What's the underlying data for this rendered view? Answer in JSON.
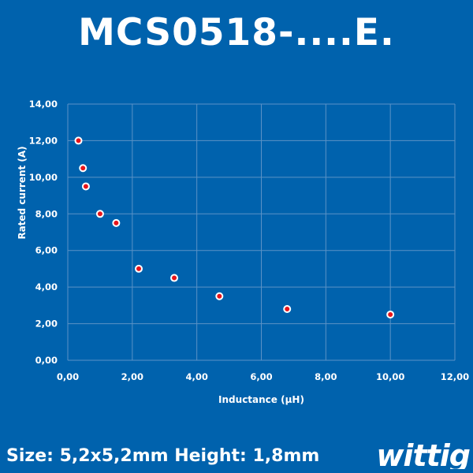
{
  "title": "MCS0518-....E.",
  "footer": {
    "spec_text": "Size: 5,2x5,2mm Height: 1,8mm",
    "logo_text": "wittig"
  },
  "colors": {
    "background": "#0062ad",
    "grid": "#5b92c6",
    "marker_fill": "#e8141a",
    "marker_stroke": "#ffffff",
    "text": "#ffffff"
  },
  "chart_data": {
    "type": "scatter",
    "title": "",
    "xlabel": "Inductance (µH)",
    "ylabel": "Rated current (A)",
    "xlim": [
      0,
      12
    ],
    "ylim": [
      0,
      14
    ],
    "xticks": [
      "0,00",
      "2,00",
      "4,00",
      "6,00",
      "8,00",
      "10,00",
      "12,00"
    ],
    "yticks": [
      "0,00",
      "2,00",
      "4,00",
      "6,00",
      "8,00",
      "10,00",
      "12,00",
      "14,00"
    ],
    "grid": true,
    "legend": "none",
    "points": [
      {
        "x": 0.33,
        "y": 12.0
      },
      {
        "x": 0.47,
        "y": 10.5
      },
      {
        "x": 0.56,
        "y": 9.5
      },
      {
        "x": 1.0,
        "y": 8.0
      },
      {
        "x": 1.5,
        "y": 7.5
      },
      {
        "x": 2.2,
        "y": 5.0
      },
      {
        "x": 3.3,
        "y": 4.5
      },
      {
        "x": 4.7,
        "y": 3.5
      },
      {
        "x": 6.8,
        "y": 2.8
      },
      {
        "x": 10.0,
        "y": 2.5
      }
    ]
  }
}
